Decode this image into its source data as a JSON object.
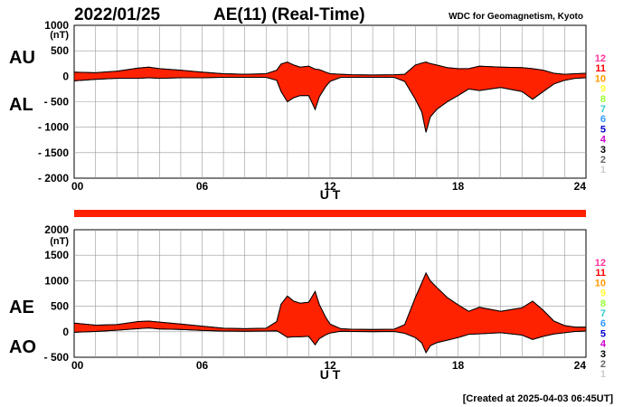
{
  "header": {
    "date": "2022/01/25",
    "title": "AE(11) (Real-Time)",
    "source": "WDC for Geomagnetism, Kyoto"
  },
  "footer": {
    "created": "[Created at 2025-04-03 06:45UT]"
  },
  "station_scale": {
    "labels": [
      "12",
      "11",
      "10",
      "9",
      "8",
      "7",
      "6",
      "5",
      "4",
      "3",
      "2",
      "1"
    ],
    "colors": [
      "#ff3399",
      "#ff0000",
      "#ff9900",
      "#ffff33",
      "#99ff33",
      "#33cccc",
      "#3399ff",
      "#0000cc",
      "#cc00cc",
      "#000000",
      "#666666",
      "#cccccc"
    ]
  },
  "colors": {
    "fill": "#ff2200",
    "band": "#ff2200",
    "outline": "#000000",
    "grid": "#999999"
  },
  "chart_data": [
    {
      "type": "area",
      "left_labels": [
        "AU",
        "AL"
      ],
      "unit": "(nT)",
      "xlabel": "U T",
      "xlim": [
        0,
        24
      ],
      "xticks": [
        "00",
        "06",
        "12",
        "18",
        "24"
      ],
      "ylim": [
        -2000,
        1000
      ],
      "yticks": [
        "1000",
        "500",
        "0",
        "- 500",
        "- 1000",
        "- 1500",
        "- 2000"
      ],
      "grid": true,
      "series": [
        {
          "x": [
            0,
            1,
            2,
            3,
            3.5,
            4,
            5,
            6,
            7,
            8,
            9,
            9.5,
            9.7,
            10,
            10.3,
            10.6,
            11,
            11.3,
            11.5,
            11.8,
            12,
            12.5,
            13,
            14,
            15,
            15.5,
            16,
            16.3,
            16.5,
            16.7,
            17,
            17.5,
            18,
            18.5,
            19,
            20,
            21,
            21.5,
            22,
            22.5,
            23,
            23.5,
            24
          ],
          "values": [
            80,
            70,
            100,
            160,
            180,
            150,
            120,
            80,
            50,
            40,
            50,
            120,
            240,
            280,
            220,
            180,
            200,
            140,
            130,
            80,
            50,
            40,
            30,
            25,
            30,
            40,
            220,
            260,
            280,
            250,
            220,
            170,
            150,
            150,
            200,
            180,
            170,
            150,
            120,
            60,
            40,
            50,
            60
          ]
        },
        {
          "x": [
            0,
            1,
            2,
            3,
            3.5,
            4,
            5,
            6,
            7,
            8,
            9,
            9.5,
            9.7,
            10,
            10.3,
            10.6,
            11,
            11.3,
            11.5,
            11.8,
            12,
            12.5,
            13,
            14,
            15,
            15.5,
            16,
            16.3,
            16.5,
            16.7,
            17,
            17.5,
            18,
            18.5,
            19,
            20,
            21,
            21.5,
            22,
            22.5,
            23,
            23.5,
            24
          ],
          "values": [
            -90,
            -60,
            -40,
            -40,
            -30,
            -40,
            -30,
            -30,
            -20,
            -20,
            -20,
            -80,
            -300,
            -500,
            -420,
            -380,
            -380,
            -650,
            -400,
            -200,
            -100,
            -20,
            -20,
            -20,
            -20,
            -100,
            -450,
            -700,
            -1100,
            -800,
            -650,
            -500,
            -380,
            -250,
            -280,
            -220,
            -300,
            -450,
            -300,
            -150,
            -80,
            -40,
            -30
          ]
        }
      ]
    },
    {
      "type": "area",
      "left_labels": [
        "AE",
        "AO"
      ],
      "unit": "(nT)",
      "xlabel": "U T",
      "xlim": [
        0,
        24
      ],
      "xticks": [
        "00",
        "06",
        "12",
        "18",
        "24"
      ],
      "ylim": [
        -500,
        2000
      ],
      "yticks": [
        "2000",
        "1500",
        "1000",
        "500",
        "0",
        "- 500"
      ],
      "grid": true,
      "series": [
        {
          "x": [
            0,
            1,
            2,
            3,
            3.5,
            4,
            5,
            6,
            7,
            8,
            9,
            9.5,
            9.7,
            10,
            10.3,
            10.6,
            11,
            11.3,
            11.5,
            11.8,
            12,
            12.5,
            13,
            14,
            15,
            15.5,
            16,
            16.3,
            16.5,
            16.7,
            17,
            17.5,
            18,
            18.5,
            19,
            20,
            21,
            21.5,
            22,
            22.5,
            23,
            23.5,
            24
          ],
          "values": [
            170,
            130,
            140,
            200,
            210,
            190,
            150,
            110,
            70,
            60,
            70,
            200,
            540,
            700,
            600,
            560,
            580,
            790,
            530,
            280,
            150,
            60,
            50,
            45,
            50,
            140,
            670,
            960,
            1150,
            1000,
            870,
            670,
            530,
            400,
            480,
            400,
            470,
            600,
            420,
            210,
            120,
            90,
            90
          ]
        },
        {
          "x": [
            0,
            1,
            2,
            3,
            3.5,
            4,
            5,
            6,
            7,
            8,
            9,
            9.5,
            9.7,
            10,
            10.3,
            10.6,
            11,
            11.3,
            11.5,
            11.8,
            12,
            12.5,
            13,
            14,
            15,
            15.5,
            16,
            16.3,
            16.5,
            16.7,
            17,
            17.5,
            18,
            18.5,
            19,
            20,
            21,
            21.5,
            22,
            22.5,
            23,
            23.5,
            24
          ],
          "values": [
            -10,
            5,
            30,
            60,
            75,
            55,
            45,
            25,
            15,
            10,
            15,
            20,
            -30,
            -110,
            -100,
            -100,
            -90,
            -255,
            -135,
            -60,
            -25,
            10,
            5,
            2,
            5,
            -30,
            -115,
            -220,
            -410,
            -275,
            -215,
            -165,
            -115,
            -50,
            -40,
            -20,
            -65,
            -150,
            -90,
            -45,
            -20,
            5,
            15
          ]
        }
      ]
    }
  ]
}
